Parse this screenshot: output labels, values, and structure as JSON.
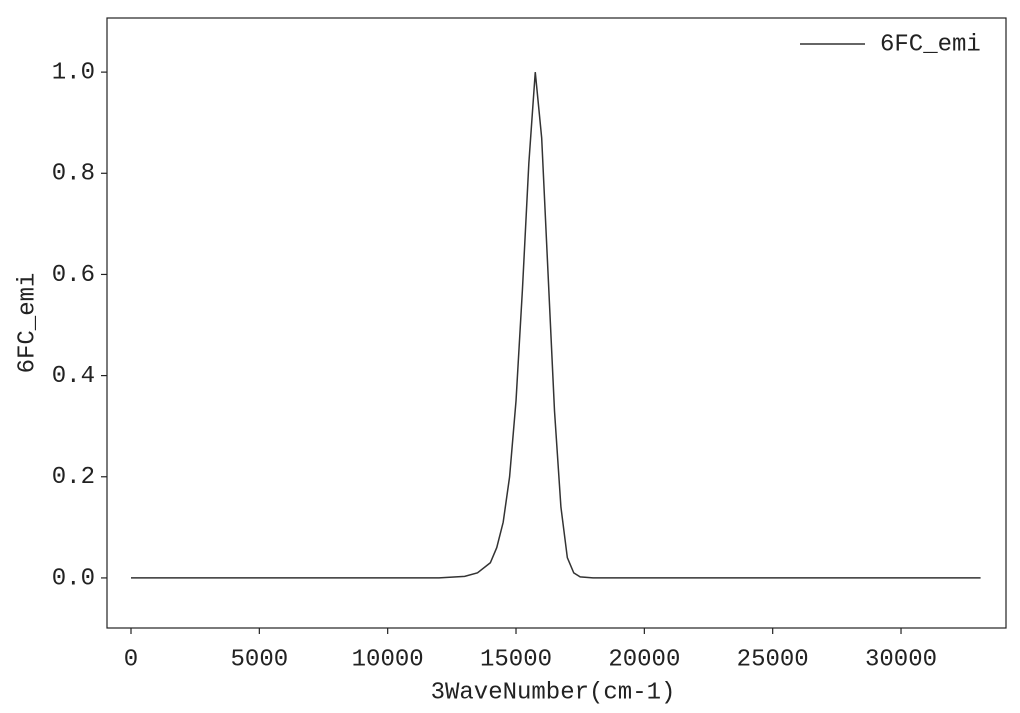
{
  "chart_data": {
    "type": "line",
    "xlabel": "3WaveNumber(cm-1)",
    "ylabel": "6FC_emi",
    "series": [
      {
        "name": "6FC_emi",
        "color": "#333333",
        "x": [
          0,
          12000,
          13000,
          13500,
          14000,
          14250,
          14500,
          14750,
          15000,
          15250,
          15500,
          15750,
          16000,
          16250,
          16500,
          16750,
          17000,
          17250,
          17500,
          18000,
          33100
        ],
        "values": [
          0,
          0,
          0.003,
          0.01,
          0.03,
          0.06,
          0.11,
          0.2,
          0.35,
          0.57,
          0.82,
          1.0,
          0.87,
          0.6,
          0.33,
          0.14,
          0.04,
          0.01,
          0.002,
          0,
          0
        ]
      }
    ],
    "xlim": [
      -935,
      34090
    ],
    "xticks": [
      0,
      5000,
      10000,
      15000,
      20000,
      25000,
      30000
    ],
    "ylim": [
      -0.099,
      1.107
    ],
    "yticks": [
      {
        "value": 0,
        "label": "0.0"
      },
      0.2,
      0.4,
      0.6,
      0.8,
      {
        "value": 1,
        "label": "1.0"
      }
    ],
    "legend": "upper right"
  }
}
